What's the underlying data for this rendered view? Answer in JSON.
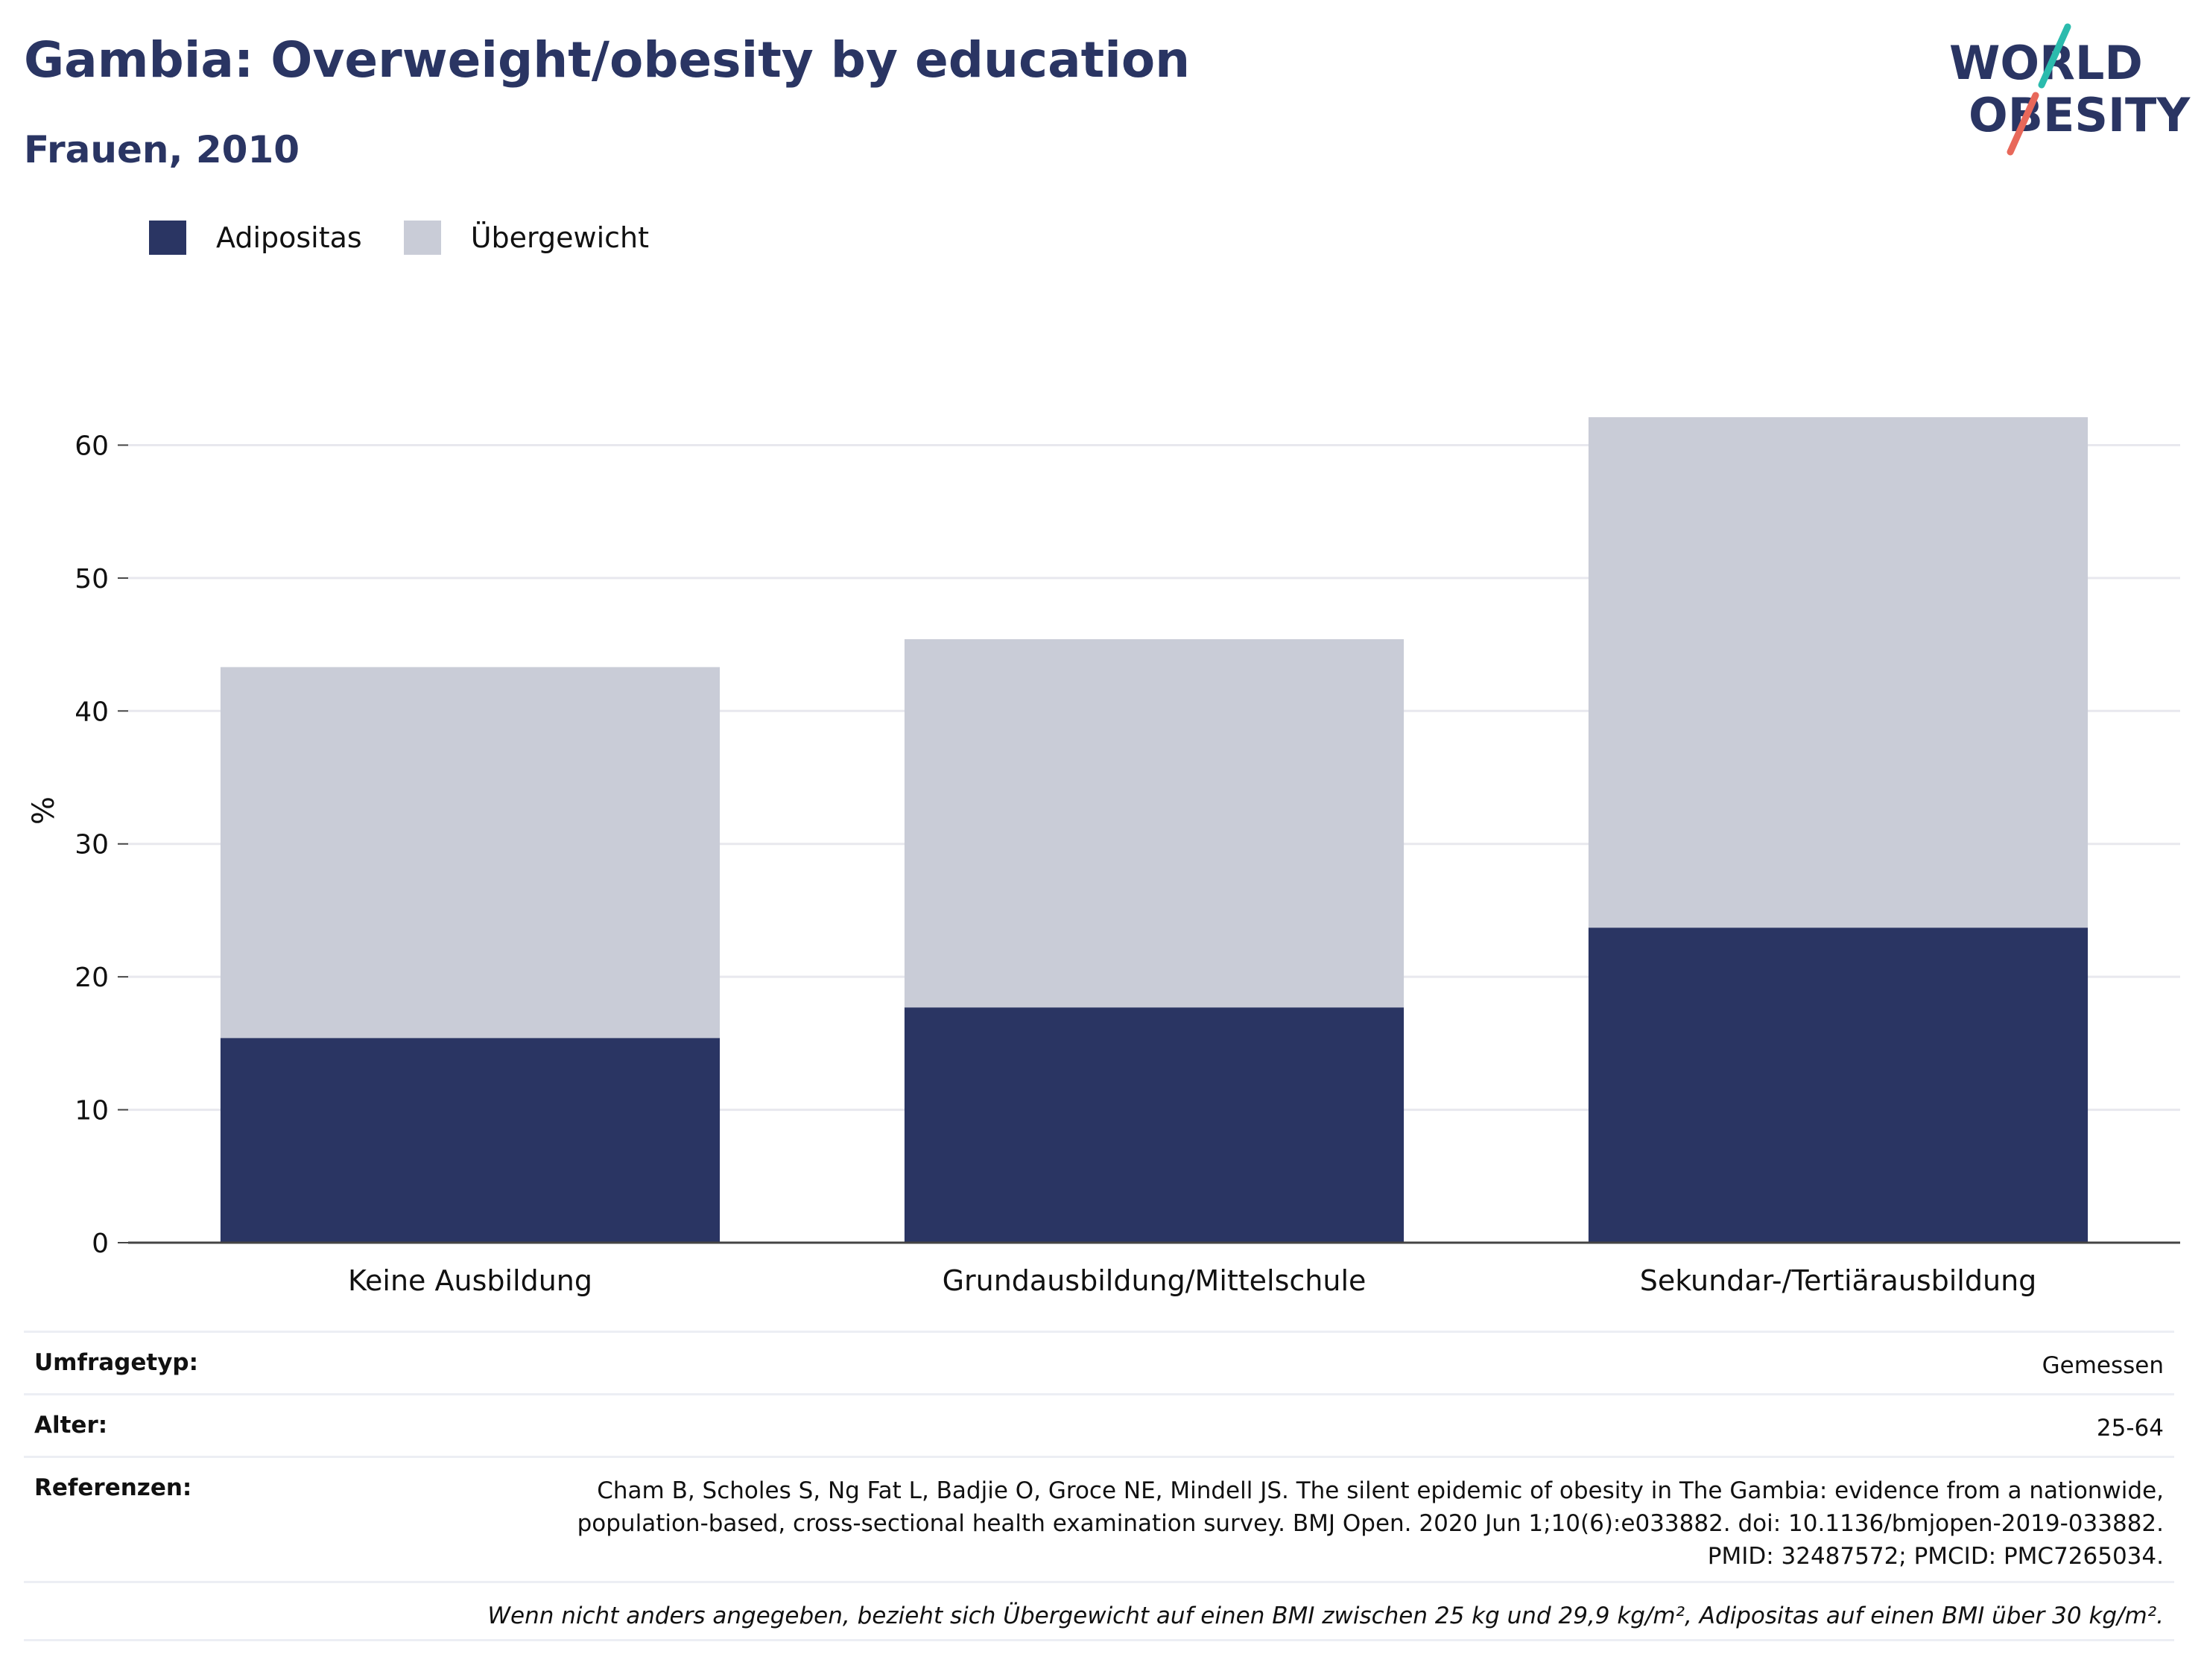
{
  "header": {
    "title": "Gambia: Overweight/obesity by education",
    "subtitle": "Frauen, 2010"
  },
  "logo": {
    "line1": "WORLD",
    "line2": "OBESITY",
    "accent_teal": "#2bbbad",
    "accent_red": "#e8685a"
  },
  "colors": {
    "obesity": "#2a3563",
    "overweight": "#c9ccd7",
    "grid": "#e8e8ee",
    "axis": "#444444"
  },
  "legend": [
    {
      "label": "Adipositas",
      "color": "#2a3563"
    },
    {
      "label": "Übergewicht",
      "color": "#c9ccd7"
    }
  ],
  "chart_data": {
    "type": "bar",
    "stacked": true,
    "categories": [
      "Keine Ausbildung",
      "Grundausbildung/Mittelschule",
      "Sekundar-/Tertiärausbildung"
    ],
    "series": [
      {
        "name": "Adipositas",
        "values": [
          15.4,
          17.7,
          23.7
        ]
      },
      {
        "name": "Übergewicht",
        "values": [
          27.9,
          27.7,
          38.4
        ]
      }
    ],
    "ylabel": "%",
    "ylim": [
      0,
      62.1
    ],
    "yticks": [
      0,
      10,
      20,
      30,
      40,
      50,
      60
    ],
    "grid": true,
    "legend_position": "top-left"
  },
  "meta": {
    "survey_type_label": "Umfragetyp:",
    "survey_type_value": "Gemessen",
    "age_label": "Alter:",
    "age_value": "25-64",
    "references_label": "Referenzen:",
    "references_value": "Cham B, Scholes S, Ng Fat L, Badjie O, Groce NE, Mindell JS. The silent epidemic of obesity in The Gambia: evidence from a nationwide, population-based, cross-sectional health examination survey. BMJ Open. 2020 Jun 1;10(6):e033882. doi: 10.1136/bmjopen-2019-033882. PMID: 32487572; PMCID: PMC7265034.",
    "footnote": "Wenn nicht anders angegeben, bezieht sich Übergewicht auf einen BMI zwischen 25 kg und 29,9 kg/m², Adipositas auf einen BMI über 30 kg/m²."
  }
}
